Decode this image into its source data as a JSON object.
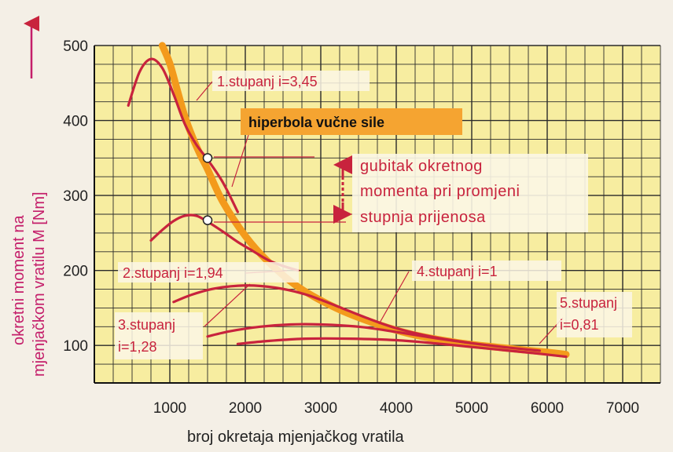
{
  "chart_data": {
    "type": "line",
    "xlabel": "broj okretaja mjenjačkog vratila",
    "ylabel_line1": "okretni moment na",
    "ylabel_line2": "mjenjačkom vratilu M [Nm]",
    "xlim": [
      0,
      7500
    ],
    "ylim": [
      50,
      500
    ],
    "x_ticks": [
      1000,
      2000,
      3000,
      4000,
      5000,
      6000,
      7000
    ],
    "y_ticks": [
      100,
      200,
      300,
      400,
      500
    ],
    "grid": true,
    "colors": {
      "background": "#f7eda0",
      "grid": "#2a2a2a",
      "gear_curves": "#c8233d",
      "hyperbola": "#f39a1c",
      "hyperbola_label_bg": "#f5a431",
      "ylabel": "#c41e6a"
    },
    "series": [
      {
        "name": "1.stupanj  i=3,45",
        "x": [
          450,
          600,
          750,
          900,
          1050,
          1200,
          1350,
          1500,
          1700,
          1900
        ],
        "y": [
          420,
          465,
          482,
          470,
          435,
          395,
          368,
          348,
          318,
          278
        ]
      },
      {
        "name": "2.stupanj  i=1,94",
        "x": [
          750,
          900,
          1050,
          1200,
          1350,
          1500,
          1700,
          1900,
          2100,
          2300,
          2500,
          2700
        ],
        "y": [
          240,
          254,
          266,
          273,
          273,
          265,
          252,
          238,
          226,
          214,
          206,
          200
        ]
      },
      {
        "name": "3.stupanj  i=1,28",
        "x": [
          1050,
          1300,
          1600,
          2000,
          2400,
          2800,
          3200,
          3600,
          4000,
          4500,
          5000
        ],
        "y": [
          158,
          168,
          176,
          180,
          177,
          168,
          153,
          137,
          123,
          111,
          103
        ]
      },
      {
        "name": "4.stupanj   i=1",
        "x": [
          1500,
          1800,
          2200,
          2600,
          3000,
          3500,
          4000,
          4500,
          5000,
          5500,
          5900
        ],
        "y": [
          112,
          119,
          125,
          128,
          128,
          125,
          118,
          110,
          103,
          97,
          93
        ]
      },
      {
        "name": "5.stupanj  i=0,81",
        "x": [
          1900,
          2300,
          2800,
          3400,
          4000,
          4600,
          5200,
          5800,
          6250
        ],
        "y": [
          102,
          106,
          109,
          109,
          107,
          102,
          96,
          90,
          85
        ]
      },
      {
        "name": "hiperbola vučne sile",
        "x": [
          900,
          1000,
          1100,
          1200,
          1300,
          1400,
          1500,
          1700,
          2000,
          2300,
          2700,
          3200,
          3700,
          4200,
          4800,
          5400,
          6000,
          6250
        ],
        "y": [
          500,
          476,
          440,
          405,
          378,
          355,
          335,
          292,
          246,
          212,
          178,
          150,
          130,
          115,
          104,
          97,
          91,
          88
        ]
      }
    ],
    "markers": [
      {
        "x": 1500,
        "y": 350
      },
      {
        "x": 1500,
        "y": 267
      }
    ],
    "annotations": {
      "gear1": "1.stupanj  i=3,45",
      "gear2": "2.stupanj  i=1,94",
      "gear3_line1": "3.stupanj",
      "gear3_line2": "i=1,28",
      "gear4": "4.stupanj   i=1",
      "gear5_line1": "5.stupanj",
      "gear5_line2": "i=0,81",
      "hyperbola_label": "hiperbola vučne sile",
      "gap_line1": "gubitak  okretnog",
      "gap_line2": "momenta  pri  promjeni",
      "gap_line3": "stupnja  prijenosa"
    }
  }
}
